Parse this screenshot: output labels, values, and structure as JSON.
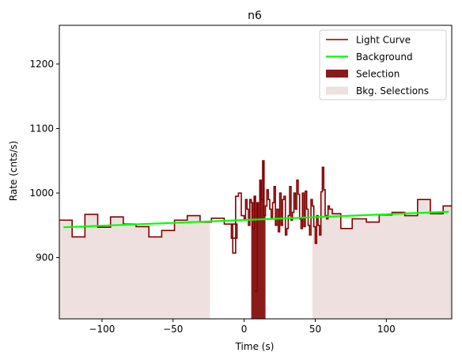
{
  "chart_data": {
    "type": "line",
    "title": "n6",
    "xlabel": "Time (s)",
    "ylabel": "Rate (cnts/s)",
    "xlim": [
      -130,
      146
    ],
    "ylim": [
      805,
      1260
    ],
    "xticks": [
      -100,
      -50,
      0,
      50,
      100
    ],
    "xtick_labels": [
      "−100",
      "−50",
      "0",
      "50",
      "100"
    ],
    "yticks": [
      900,
      1000,
      1100,
      1200
    ],
    "ytick_labels": [
      "900",
      "1000",
      "1100",
      "1200"
    ],
    "grid": false,
    "legend_position": "top-right",
    "colors": {
      "light_curve": "#800000",
      "background": "#00ff00",
      "selection": "#8b1a1a",
      "bkg_selection": "#efe0e0"
    },
    "legend": [
      {
        "label": "Light Curve",
        "kind": "line",
        "color": "#800000"
      },
      {
        "label": "Background",
        "kind": "line",
        "color": "#00ff00"
      },
      {
        "label": "Selection",
        "kind": "patch",
        "color": "#8b1a1a"
      },
      {
        "label": "Bkg. Selections",
        "kind": "patch",
        "color": "#efe0e0"
      }
    ],
    "bkg_selections": [
      [
        -130,
        -24
      ],
      [
        48,
        146
      ]
    ],
    "selection": [
      5,
      15
    ],
    "background_line": {
      "x": [
        -127,
        144
      ],
      "y": [
        947,
        971
      ]
    },
    "light_curve": {
      "x": [
        -130,
        -121,
        -112,
        -103,
        -94,
        -85,
        -76,
        -67,
        -58,
        -49,
        -40,
        -31,
        -23,
        -14,
        -5,
        -9,
        -8,
        -6,
        -4,
        -2,
        0,
        1,
        2,
        3,
        4,
        5,
        6,
        7,
        8,
        9,
        10,
        11,
        12,
        13,
        14,
        15,
        16,
        17,
        18,
        19,
        20,
        21,
        22,
        23,
        24,
        25,
        26,
        27,
        28,
        29,
        30,
        31,
        32,
        33,
        34,
        35,
        36,
        37,
        38,
        39,
        40,
        41,
        42,
        43,
        44,
        45,
        46,
        47,
        48,
        49,
        50,
        51,
        52,
        53,
        54,
        55,
        56,
        57,
        58,
        59,
        60,
        62,
        68,
        76,
        86,
        95,
        104,
        113,
        122,
        131,
        140,
        146
      ],
      "y": [
        958,
        932,
        967,
        947,
        963,
        952,
        948,
        932,
        942,
        958,
        965,
        955,
        961,
        952,
        930,
        950,
        907,
        995,
        1000,
        965,
        960,
        990,
        975,
        950,
        990,
        985,
        945,
        995,
        848,
        985,
        960,
        1020,
        990,
        1050,
        965,
        980,
        1005,
        990,
        975,
        960,
        985,
        1010,
        950,
        975,
        940,
        1000,
        950,
        990,
        995,
        935,
        945,
        965,
        1010,
        958,
        970,
        1000,
        975,
        1020,
        998,
        960,
        945,
        1000,
        948,
        1003,
        975,
        950,
        935,
        990,
        980,
        948,
        922,
        965,
        950,
        935,
        1002,
        1040,
        1005,
        965,
        960,
        980,
        975,
        968,
        945,
        960,
        955,
        966,
        970,
        965,
        990,
        968,
        980,
        980
      ]
    }
  }
}
